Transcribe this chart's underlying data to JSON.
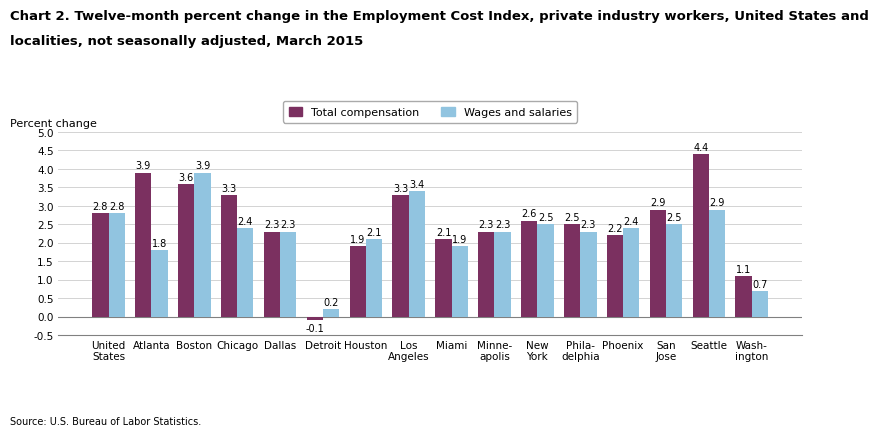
{
  "title_line1": "Chart 2. Twelve-month percent change in the Employment Cost Index, private industry workers, United States and",
  "title_line2": "localities, not seasonally adjusted, March 2015",
  "ylabel": "Percent change",
  "source": "Source: U.S. Bureau of Labor Statistics.",
  "categories": [
    "United\nStates",
    "Atlanta",
    "Boston",
    "Chicago",
    "Dallas",
    "Detroit",
    "Houston",
    "Los\nAngeles",
    "Miami",
    "Minne-\napolis",
    "New\nYork",
    "Phila-\ndelphia",
    "Phoenix",
    "San\nJose",
    "Seattle",
    "Wash-\nington"
  ],
  "total_compensation": [
    2.8,
    3.9,
    3.6,
    3.3,
    2.3,
    -0.1,
    1.9,
    3.3,
    2.1,
    2.3,
    2.6,
    2.5,
    2.2,
    2.9,
    4.4,
    1.1
  ],
  "wages_and_salaries": [
    2.8,
    1.8,
    3.9,
    2.4,
    2.3,
    0.2,
    2.1,
    3.4,
    1.9,
    2.3,
    2.5,
    2.3,
    2.4,
    2.5,
    2.9,
    0.7
  ],
  "color_total": "#7B3060",
  "color_wages": "#91C4E0",
  "ylim": [
    -0.5,
    5.0
  ],
  "yticks": [
    -0.5,
    0.0,
    0.5,
    1.0,
    1.5,
    2.0,
    2.5,
    3.0,
    3.5,
    4.0,
    4.5,
    5.0
  ],
  "legend_total": "Total compensation",
  "legend_wages": "Wages and salaries",
  "bar_width": 0.38,
  "title_fontsize": 9.5,
  "label_fontsize": 8,
  "tick_fontsize": 7.5,
  "annotation_fontsize": 7.0
}
